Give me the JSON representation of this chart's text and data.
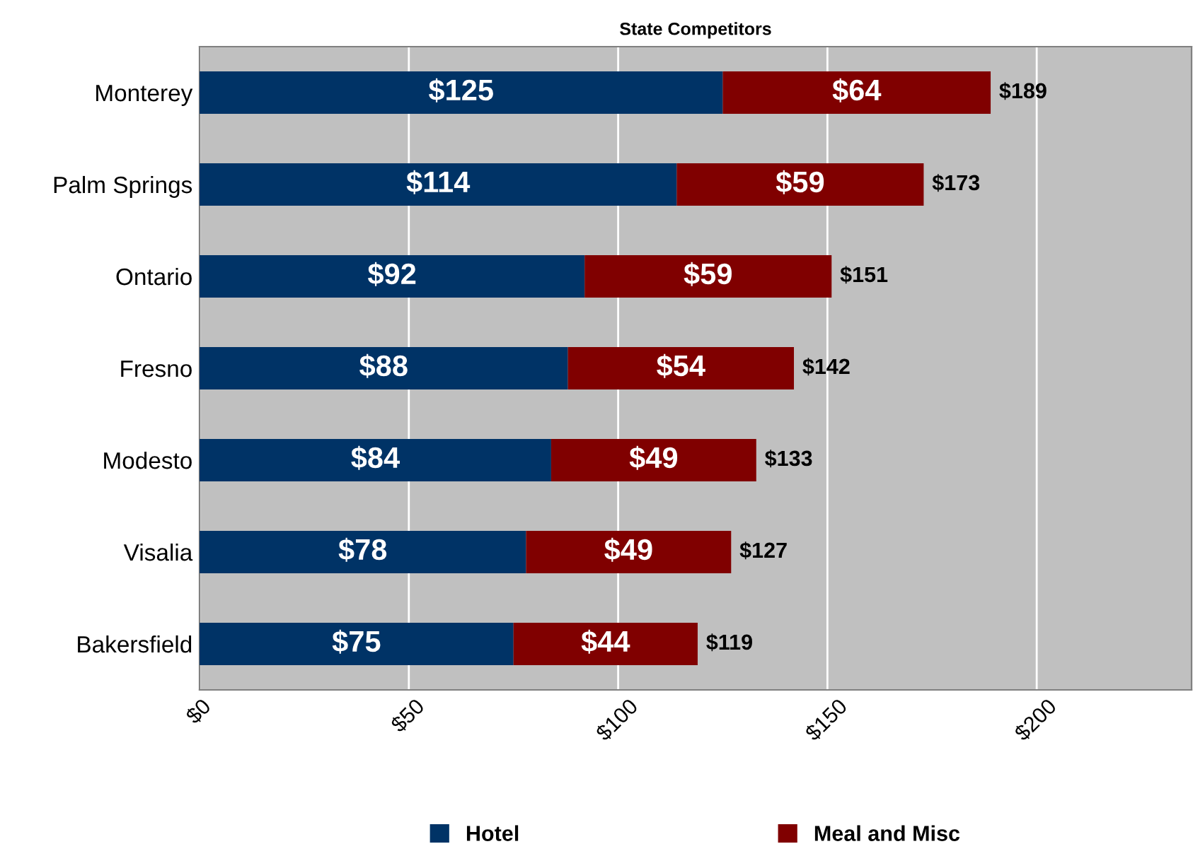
{
  "chart_data": {
    "type": "bar",
    "title": "State Competitors",
    "orientation": "horizontal",
    "stacked": true,
    "categories": [
      "Monterey",
      "Palm Springs",
      "Ontario",
      "Fresno",
      "Modesto",
      "Visalia",
      "Bakersfield"
    ],
    "series": [
      {
        "name": "Hotel",
        "color": "#003366",
        "values": [
          125,
          114,
          92,
          88,
          84,
          78,
          75
        ],
        "value_labels": [
          "$125",
          "$114",
          "$92",
          "$88",
          "$84",
          "$78",
          "$75"
        ]
      },
      {
        "name": "Meal and Misc",
        "color": "#800000",
        "values": [
          64,
          59,
          59,
          54,
          49,
          49,
          44
        ],
        "value_labels": [
          "$64",
          "$59",
          "$59",
          "$54",
          "$49",
          "$49",
          "$44"
        ]
      }
    ],
    "totals": [
      "$189",
      "$173",
      "$151",
      "$142",
      "$133",
      "$127",
      "$119"
    ],
    "xlim": [
      0,
      237
    ],
    "xticks": [
      {
        "value": 0,
        "label": "$0"
      },
      {
        "value": 50,
        "label": "$50"
      },
      {
        "value": 100,
        "label": "$100"
      },
      {
        "value": 150,
        "label": "$150"
      },
      {
        "value": 200,
        "label": "$200"
      }
    ],
    "grid": "x",
    "legend": "bottom"
  }
}
